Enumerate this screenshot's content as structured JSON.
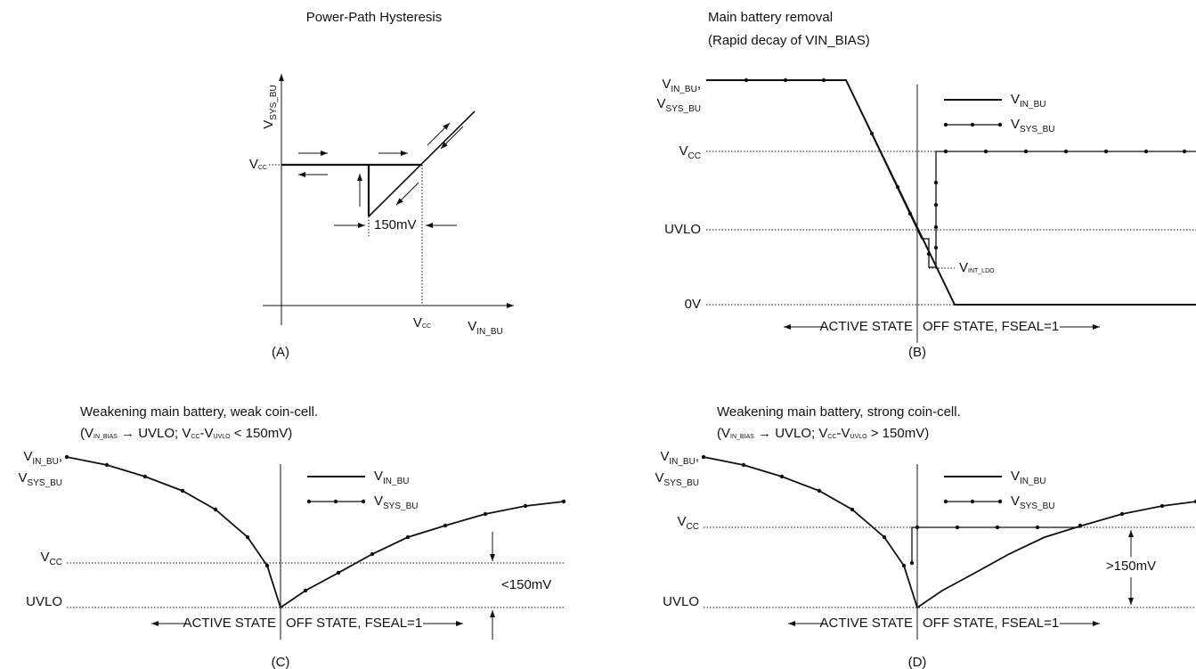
{
  "panels": [
    {
      "title": "Power-Path Hysteresis",
      "y_label": [
        {
          "text": "V"
        },
        {
          "text": "SYS_BU",
          "sub": true
        }
      ],
      "y_vcc": [
        {
          "text": "V"
        },
        {
          "text": "CC",
          "sub": true
        }
      ],
      "x_vcc": [
        {
          "text": "V"
        },
        {
          "text": "CC",
          "sub": true
        }
      ],
      "x_label": [
        {
          "text": "V"
        },
        {
          "text": "IN_BU",
          "sub": true
        }
      ],
      "delta": "150mV",
      "caption": "(A)"
    },
    {
      "title": "Main battery removal",
      "subtitle": "(Rapid decay of VIN_BIAS)",
      "y_labels": [
        [
          {
            "text": "V"
          },
          {
            "text": "IN_BU",
            "sub": true
          },
          {
            "text": ","
          }
        ],
        [
          {
            "text": "V"
          },
          {
            "text": "SYS_BU",
            "sub": true
          }
        ],
        [
          {
            "text": "V"
          },
          {
            "text": "CC",
            "sub": true
          }
        ],
        "UVLO",
        "0V"
      ],
      "legend": [
        [
          {
            "text": "V"
          },
          {
            "text": "IN_BU",
            "sub": true
          }
        ],
        [
          {
            "text": "V"
          },
          {
            "text": "SYS_BU",
            "sub": true
          }
        ]
      ],
      "ldo": [
        {
          "text": "V"
        },
        {
          "text": "INT_LDO",
          "sub": true
        }
      ],
      "active": "ACTIVE STATE",
      "off": "OFF STATE, FSEAL=1",
      "caption": "(B)"
    },
    {
      "title": "Weakening main battery, weak coin-cell.",
      "subtitle": [
        {
          "text": "(V"
        },
        {
          "text": "IN_BIAS",
          "sub": true
        },
        {
          "text": " → UVLO; V"
        },
        {
          "text": "CC",
          "sub": true
        },
        {
          "text": "-V"
        },
        {
          "text": "UVLO",
          "sub": true
        },
        {
          "text": " < 150mV)"
        }
      ],
      "y_labels": [
        [
          {
            "text": "V"
          },
          {
            "text": "IN_BU",
            "sub": true
          },
          {
            "text": ","
          }
        ],
        [
          {
            "text": "V"
          },
          {
            "text": "SYS_BU",
            "sub": true
          }
        ],
        [
          {
            "text": "V"
          },
          {
            "text": "CC",
            "sub": true
          }
        ],
        "UVLO"
      ],
      "legend": [
        [
          {
            "text": "V"
          },
          {
            "text": "IN_BU",
            "sub": true
          }
        ],
        [
          {
            "text": "V"
          },
          {
            "text": "SYS_BU",
            "sub": true
          }
        ]
      ],
      "delta": "<150mV",
      "active": "ACTIVE STATE",
      "off": "OFF STATE, FSEAL=1",
      "caption": "(C)"
    },
    {
      "title": "Weakening main battery, strong coin-cell.",
      "subtitle": [
        {
          "text": "(V"
        },
        {
          "text": "IN_BIAS",
          "sub": true
        },
        {
          "text": " → UVLO; V"
        },
        {
          "text": "CC",
          "sub": true
        },
        {
          "text": "-V"
        },
        {
          "text": "UVLO",
          "sub": true
        },
        {
          "text": " > 150mV)"
        }
      ],
      "y_labels": [
        [
          {
            "text": "V"
          },
          {
            "text": "IN_BU",
            "sub": true
          },
          {
            "text": ","
          }
        ],
        [
          {
            "text": "V"
          },
          {
            "text": "SYS_BU",
            "sub": true
          }
        ],
        [
          {
            "text": "V"
          },
          {
            "text": "CC",
            "sub": true
          }
        ],
        "UVLO"
      ],
      "legend": [
        [
          {
            "text": "V"
          },
          {
            "text": "IN_BU",
            "sub": true
          }
        ],
        [
          {
            "text": "V"
          },
          {
            "text": "SYS_BU",
            "sub": true
          }
        ]
      ],
      "delta": ">150mV",
      "active": "ACTIVE STATE",
      "off": "OFF STATE, FSEAL=1",
      "caption": "(D)"
    }
  ]
}
